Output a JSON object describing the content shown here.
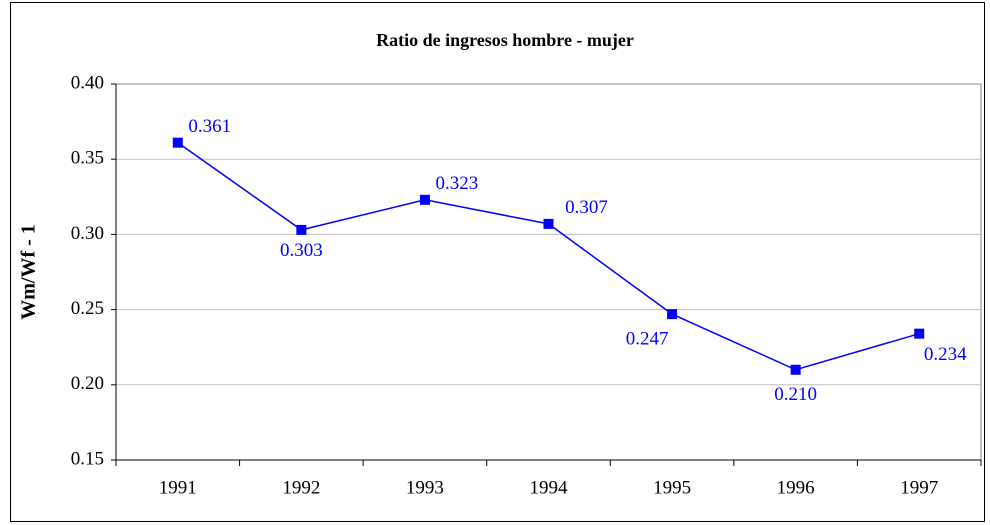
{
  "chart_data": {
    "type": "line",
    "title": "Ratio de ingresos hombre - mujer",
    "y_label": "Wm/Wf - 1",
    "categories": [
      "1991",
      "1992",
      "1993",
      "1994",
      "1995",
      "1996",
      "1997"
    ],
    "values": [
      0.361,
      0.303,
      0.323,
      0.307,
      0.247,
      0.21,
      0.234
    ],
    "value_labels": [
      "0.361",
      "0.303",
      "0.323",
      "0.307",
      "0.247",
      "0.210",
      "0.234"
    ],
    "color": "#0000ff",
    "ylim": [
      0.15,
      0.4
    ],
    "yticks": [
      {
        "value": 0.15,
        "label": "0.15"
      },
      {
        "value": 0.2,
        "label": "0.20"
      },
      {
        "value": 0.25,
        "label": "0.25"
      },
      {
        "value": 0.3,
        "label": "0.30"
      },
      {
        "value": 0.35,
        "label": "0.35"
      },
      {
        "value": 0.4,
        "label": "0.40"
      }
    ],
    "grid": true
  }
}
